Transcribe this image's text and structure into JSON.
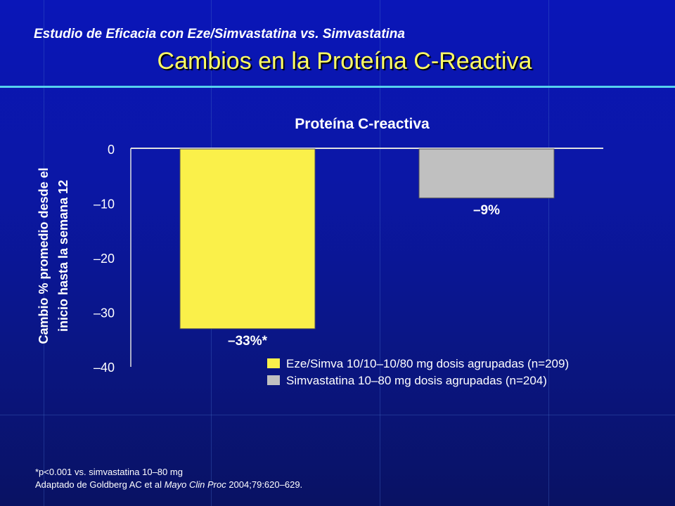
{
  "slide": {
    "supertitle": "Estudio de Eficacia con Eze/Simvastatina vs. Simvastatina",
    "title": "Cambios en la Proteína C-Reactiva"
  },
  "colors": {
    "background": "#0a16a8",
    "title": "#ffff66",
    "rule": "#55d0ee",
    "text": "#ffffff",
    "series_eze": "#faf04a",
    "series_simva": "#c0c0c0"
  },
  "chart_data": {
    "type": "bar",
    "title": "Proteína C-reactiva",
    "xlabel": "",
    "ylabel": [
      "Cambio % promedio desde el",
      "inicio hasta la semana 12"
    ],
    "ylim": [
      -40,
      0
    ],
    "yticks": [
      0,
      -10,
      -20,
      -30,
      -40
    ],
    "ytick_labels": [
      "0",
      "–10",
      "–20",
      "–30",
      "–40"
    ],
    "grid": false,
    "legend_position": "bottom-right",
    "categories": [
      "Eze/Simva 10/10–10/80 mg dosis agrupadas (n=209)",
      "Simvastatina 10–80 mg dosis agrupadas (n=204)"
    ],
    "values": [
      -33,
      -9
    ],
    "data_labels": [
      "–33%*",
      "–9%"
    ],
    "series": [
      {
        "name": "Eze/Simva 10/10–10/80 mg dosis agrupadas (n=209)",
        "values": [
          -33,
          null
        ],
        "color": "#faf04a"
      },
      {
        "name": "Simvastatina 10–80 mg dosis agrupadas (n=204)",
        "values": [
          null,
          -9
        ],
        "color": "#c0c0c0"
      }
    ]
  },
  "footnotes": {
    "significance": "*p<0.001 vs. simvastatina 10–80 mg",
    "source_prefix": "Adaptado de Goldberg AC et al ",
    "source_journal": "Mayo Clin Proc",
    "source_suffix": " 2004;79:620–629."
  }
}
